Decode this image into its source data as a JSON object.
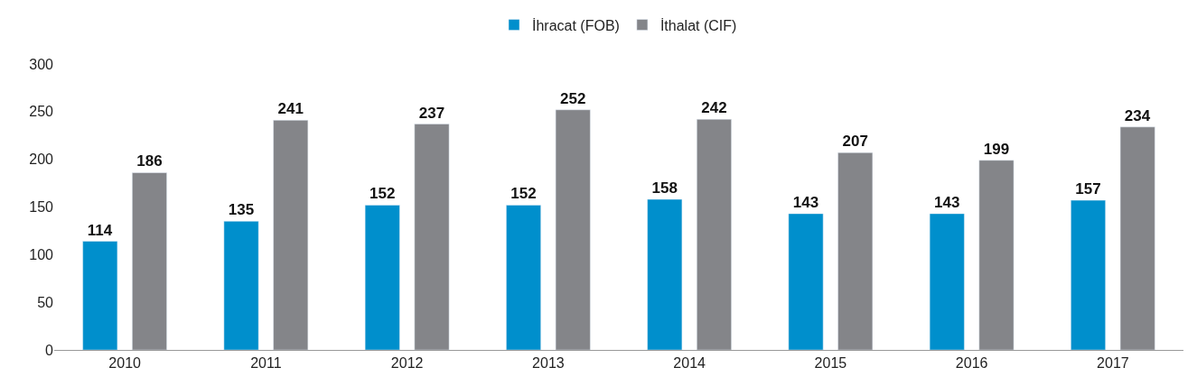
{
  "chart_data": {
    "type": "bar",
    "categories": [
      "2010",
      "2011",
      "2012",
      "2013",
      "2014",
      "2015",
      "2016",
      "2017"
    ],
    "series": [
      {
        "name": "İhracat (FOB)",
        "color": "#008fcc",
        "values": [
          114,
          135,
          152,
          152,
          158,
          143,
          143,
          157
        ]
      },
      {
        "name": "İthalat (CIF)",
        "color": "#848589",
        "values": [
          186,
          241,
          237,
          252,
          242,
          207,
          199,
          234
        ]
      }
    ],
    "ylim": [
      0,
      300
    ],
    "yticks": [
      0,
      50,
      100,
      150,
      200,
      250,
      300
    ],
    "data_labels": true,
    "legend": "top"
  }
}
